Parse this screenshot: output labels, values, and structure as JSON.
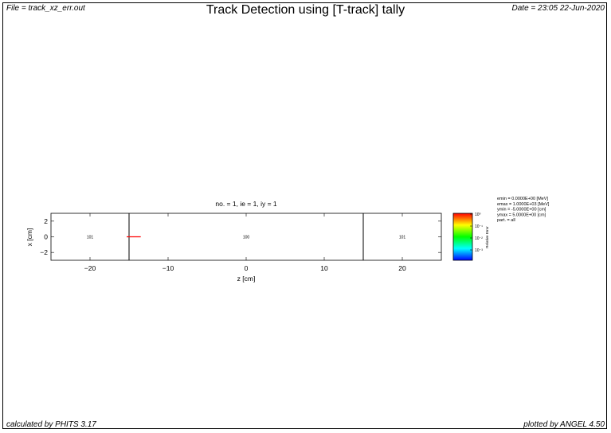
{
  "header": {
    "file": "File = track_xz_err.out",
    "title": "Track Detection using [T-track] tally",
    "date": "Date = 23:05 22-Jun-2020"
  },
  "footer": {
    "calculated_by": "calculated by PHITS 3.17",
    "plotted_by": "plotted by ANGEL 4.50"
  },
  "chart_data": {
    "type": "heatmap",
    "title": "no. =  1,  ie = 1,  iy =  1",
    "xlabel": "z [cm]",
    "ylabel": "x [cm]",
    "xlim": [
      -25,
      25
    ],
    "ylim": [
      -3,
      3
    ],
    "x_ticks": [
      -20,
      -10,
      0,
      10,
      20
    ],
    "y_ticks": [
      2,
      0,
      -2
    ],
    "region_boundaries_z": [
      -15,
      15
    ],
    "region_labels": [
      {
        "text": "101",
        "z": -20,
        "x": 0
      },
      {
        "text": "100",
        "z": 0,
        "x": 0
      },
      {
        "text": "101",
        "z": 20,
        "x": 0
      }
    ],
    "track_segment": {
      "z_start": -15,
      "z_end": -13.5,
      "x": 0,
      "color": "#ff0000"
    },
    "colorbar": {
      "label": "Relative Error",
      "scale": "log",
      "tick_labels": [
        "10⁰",
        "10⁻¹",
        "10⁻²",
        "10⁻³"
      ],
      "colors": [
        "#ff0000",
        "#ffff00",
        "#00ff00",
        "#00ffff",
        "#0000ff"
      ]
    },
    "params": [
      "emin  =  0.0000E+00 [MeV]",
      "emax  =  1.0000E+03 [MeV]",
      "ymin  = -5.0000E+00 [cm]",
      "ymax  =  5.0000E+00 [cm]",
      "part. = all"
    ]
  }
}
